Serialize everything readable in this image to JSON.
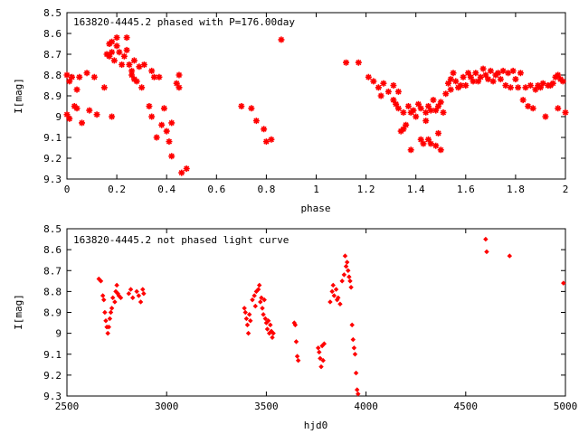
{
  "marker_color": "#ff0000",
  "chart_data": [
    {
      "type": "scatter",
      "title": "163820-4445.2 phased with P=176.00day",
      "xlabel": "phase",
      "ylabel": "I[mag]",
      "xlim": [
        0,
        2
      ],
      "ylim": [
        8.5,
        9.3
      ],
      "y_inverted": true,
      "grid": false,
      "xticks": [
        "0",
        "0.2",
        "0.4",
        "0.6",
        "0.8",
        "1",
        "1.2",
        "1.4",
        "1.6",
        "1.8",
        "2"
      ],
      "yticks": [
        "8.5",
        "8.6",
        "8.7",
        "8.8",
        "8.9",
        "9",
        "9.1",
        "9.2",
        "9.3"
      ],
      "marker": "cross",
      "points": [
        [
          0.0,
          8.8
        ],
        [
          0.0,
          8.99
        ],
        [
          0.01,
          9.01
        ],
        [
          0.01,
          8.83
        ],
        [
          0.02,
          8.81
        ],
        [
          0.03,
          8.95
        ],
        [
          0.04,
          8.96
        ],
        [
          0.04,
          8.87
        ],
        [
          0.05,
          8.81
        ],
        [
          0.06,
          9.03
        ],
        [
          0.08,
          8.79
        ],
        [
          0.09,
          8.97
        ],
        [
          0.11,
          8.81
        ],
        [
          0.12,
          8.99
        ],
        [
          0.15,
          8.86
        ],
        [
          0.16,
          8.7
        ],
        [
          0.17,
          8.65
        ],
        [
          0.17,
          8.71
        ],
        [
          0.18,
          8.64
        ],
        [
          0.18,
          8.69
        ],
        [
          0.18,
          9.0
        ],
        [
          0.19,
          8.73
        ],
        [
          0.2,
          8.62
        ],
        [
          0.2,
          8.66
        ],
        [
          0.21,
          8.69
        ],
        [
          0.22,
          8.75
        ],
        [
          0.23,
          8.71
        ],
        [
          0.24,
          8.62
        ],
        [
          0.24,
          8.68
        ],
        [
          0.25,
          8.75
        ],
        [
          0.26,
          8.78
        ],
        [
          0.26,
          8.8
        ],
        [
          0.27,
          8.73
        ],
        [
          0.27,
          8.82
        ],
        [
          0.28,
          8.83
        ],
        [
          0.29,
          8.76
        ],
        [
          0.3,
          8.86
        ],
        [
          0.31,
          8.75
        ],
        [
          0.33,
          8.95
        ],
        [
          0.34,
          9.0
        ],
        [
          0.34,
          8.78
        ],
        [
          0.35,
          8.81
        ],
        [
          0.36,
          9.1
        ],
        [
          0.37,
          8.81
        ],
        [
          0.38,
          9.04
        ],
        [
          0.39,
          8.96
        ],
        [
          0.4,
          9.07
        ],
        [
          0.41,
          9.12
        ],
        [
          0.42,
          9.03
        ],
        [
          0.42,
          9.19
        ],
        [
          0.44,
          8.84
        ],
        [
          0.45,
          8.86
        ],
        [
          0.45,
          8.8
        ],
        [
          0.46,
          9.27
        ],
        [
          0.48,
          9.25
        ],
        [
          0.7,
          8.95
        ],
        [
          0.74,
          8.96
        ],
        [
          0.76,
          9.02
        ],
        [
          0.79,
          9.06
        ],
        [
          0.8,
          9.12
        ],
        [
          0.82,
          9.11
        ],
        [
          0.86,
          8.63
        ],
        [
          1.12,
          8.74
        ],
        [
          1.17,
          8.74
        ],
        [
          1.21,
          8.81
        ],
        [
          1.23,
          8.83
        ],
        [
          1.25,
          8.86
        ],
        [
          1.26,
          8.9
        ],
        [
          1.27,
          8.84
        ],
        [
          1.29,
          8.88
        ],
        [
          1.31,
          8.92
        ],
        [
          1.31,
          8.85
        ],
        [
          1.32,
          8.94
        ],
        [
          1.33,
          8.96
        ],
        [
          1.33,
          8.88
        ],
        [
          1.34,
          9.07
        ],
        [
          1.35,
          9.06
        ],
        [
          1.35,
          8.98
        ],
        [
          1.36,
          9.04
        ],
        [
          1.37,
          8.95
        ],
        [
          1.38,
          8.98
        ],
        [
          1.38,
          9.16
        ],
        [
          1.39,
          8.97
        ],
        [
          1.4,
          9.0
        ],
        [
          1.41,
          8.94
        ],
        [
          1.42,
          9.11
        ],
        [
          1.42,
          8.96
        ],
        [
          1.43,
          9.13
        ],
        [
          1.44,
          8.98
        ],
        [
          1.44,
          9.02
        ],
        [
          1.45,
          8.95
        ],
        [
          1.45,
          9.11
        ],
        [
          1.46,
          8.97
        ],
        [
          1.46,
          9.13
        ],
        [
          1.47,
          8.92
        ],
        [
          1.48,
          9.14
        ],
        [
          1.48,
          8.97
        ],
        [
          1.49,
          8.95
        ],
        [
          1.49,
          9.08
        ],
        [
          1.5,
          8.93
        ],
        [
          1.5,
          9.16
        ],
        [
          1.51,
          8.98
        ],
        [
          1.52,
          8.89
        ],
        [
          1.53,
          8.84
        ],
        [
          1.54,
          8.87
        ],
        [
          1.54,
          8.82
        ],
        [
          1.55,
          8.79
        ],
        [
          1.56,
          8.83
        ],
        [
          1.57,
          8.86
        ],
        [
          1.58,
          8.85
        ],
        [
          1.59,
          8.81
        ],
        [
          1.6,
          8.85
        ],
        [
          1.61,
          8.79
        ],
        [
          1.62,
          8.81
        ],
        [
          1.63,
          8.83
        ],
        [
          1.64,
          8.79
        ],
        [
          1.65,
          8.83
        ],
        [
          1.66,
          8.81
        ],
        [
          1.67,
          8.77
        ],
        [
          1.68,
          8.8
        ],
        [
          1.69,
          8.82
        ],
        [
          1.7,
          8.78
        ],
        [
          1.71,
          8.83
        ],
        [
          1.72,
          8.8
        ],
        [
          1.73,
          8.79
        ],
        [
          1.74,
          8.82
        ],
        [
          1.75,
          8.78
        ],
        [
          1.76,
          8.85
        ],
        [
          1.77,
          8.79
        ],
        [
          1.78,
          8.86
        ],
        [
          1.79,
          8.78
        ],
        [
          1.8,
          8.82
        ],
        [
          1.81,
          8.86
        ],
        [
          1.82,
          8.79
        ],
        [
          1.83,
          8.92
        ],
        [
          1.84,
          8.86
        ],
        [
          1.85,
          8.95
        ],
        [
          1.86,
          8.85
        ],
        [
          1.87,
          8.96
        ],
        [
          1.88,
          8.87
        ],
        [
          1.89,
          8.85
        ],
        [
          1.9,
          8.86
        ],
        [
          1.91,
          8.84
        ],
        [
          1.92,
          9.0
        ],
        [
          1.93,
          8.85
        ],
        [
          1.94,
          8.85
        ],
        [
          1.95,
          8.84
        ],
        [
          1.96,
          8.81
        ],
        [
          1.97,
          8.96
        ],
        [
          1.97,
          8.8
        ],
        [
          1.98,
          8.82
        ],
        [
          1.99,
          8.83
        ],
        [
          2.0,
          8.98
        ]
      ]
    },
    {
      "type": "scatter",
      "title": "163820-4445.2 not phased light curve",
      "xlabel": "hjd0",
      "ylabel": "I[mag]",
      "xlim": [
        2500,
        5000
      ],
      "ylim": [
        8.5,
        9.3
      ],
      "y_inverted": true,
      "grid": false,
      "xticks": [
        "2500",
        "3000",
        "3500",
        "4000",
        "4500",
        "5000"
      ],
      "yticks": [
        "8.5",
        "8.6",
        "8.7",
        "8.8",
        "8.9",
        "9",
        "9.1",
        "9.2",
        "9.3"
      ],
      "marker": "diamond",
      "points": [
        [
          2660,
          8.74
        ],
        [
          2670,
          8.75
        ],
        [
          2680,
          8.82
        ],
        [
          2685,
          8.84
        ],
        [
          2690,
          8.9
        ],
        [
          2695,
          8.94
        ],
        [
          2700,
          8.97
        ],
        [
          2705,
          9.0
        ],
        [
          2710,
          8.97
        ],
        [
          2715,
          8.93
        ],
        [
          2720,
          8.9
        ],
        [
          2725,
          8.88
        ],
        [
          2730,
          8.83
        ],
        [
          2740,
          8.85
        ],
        [
          2745,
          8.8
        ],
        [
          2750,
          8.77
        ],
        [
          2755,
          8.81
        ],
        [
          2760,
          8.82
        ],
        [
          2770,
          8.83
        ],
        [
          2810,
          8.81
        ],
        [
          2820,
          8.79
        ],
        [
          2830,
          8.83
        ],
        [
          2850,
          8.8
        ],
        [
          2860,
          8.82
        ],
        [
          2870,
          8.85
        ],
        [
          2880,
          8.79
        ],
        [
          2885,
          8.81
        ],
        [
          3390,
          8.88
        ],
        [
          3395,
          8.9
        ],
        [
          3400,
          8.93
        ],
        [
          3405,
          8.96
        ],
        [
          3410,
          9.0
        ],
        [
          3415,
          8.91
        ],
        [
          3420,
          8.94
        ],
        [
          3430,
          8.84
        ],
        [
          3440,
          8.82
        ],
        [
          3445,
          8.87
        ],
        [
          3450,
          8.8
        ],
        [
          3460,
          8.79
        ],
        [
          3465,
          8.77
        ],
        [
          3470,
          8.85
        ],
        [
          3475,
          8.83
        ],
        [
          3480,
          8.88
        ],
        [
          3485,
          8.91
        ],
        [
          3490,
          8.84
        ],
        [
          3495,
          8.93
        ],
        [
          3500,
          8.95
        ],
        [
          3505,
          8.98
        ],
        [
          3510,
          8.94
        ],
        [
          3515,
          9.0
        ],
        [
          3520,
          8.96
        ],
        [
          3525,
          8.99
        ],
        [
          3530,
          9.02
        ],
        [
          3535,
          9.0
        ],
        [
          3640,
          8.95
        ],
        [
          3645,
          8.96
        ],
        [
          3650,
          9.04
        ],
        [
          3655,
          9.11
        ],
        [
          3660,
          9.13
        ],
        [
          3760,
          9.07
        ],
        [
          3765,
          9.09
        ],
        [
          3770,
          9.12
        ],
        [
          3775,
          9.16
        ],
        [
          3780,
          9.06
        ],
        [
          3785,
          9.13
        ],
        [
          3790,
          9.05
        ],
        [
          3820,
          8.85
        ],
        [
          3830,
          8.8
        ],
        [
          3835,
          8.77
        ],
        [
          3840,
          8.82
        ],
        [
          3850,
          8.79
        ],
        [
          3855,
          8.84
        ],
        [
          3860,
          8.83
        ],
        [
          3870,
          8.86
        ],
        [
          3880,
          8.75
        ],
        [
          3890,
          8.72
        ],
        [
          3895,
          8.63
        ],
        [
          3900,
          8.68
        ],
        [
          3905,
          8.66
        ],
        [
          3910,
          8.7
        ],
        [
          3915,
          8.73
        ],
        [
          3920,
          8.75
        ],
        [
          3925,
          8.78
        ],
        [
          3930,
          8.96
        ],
        [
          3935,
          9.03
        ],
        [
          3940,
          9.07
        ],
        [
          3945,
          9.1
        ],
        [
          3950,
          9.19
        ],
        [
          3955,
          9.27
        ],
        [
          3960,
          9.29
        ],
        [
          4600,
          8.55
        ],
        [
          4605,
          8.61
        ],
        [
          4720,
          8.63
        ],
        [
          4990,
          8.76
        ]
      ]
    }
  ]
}
